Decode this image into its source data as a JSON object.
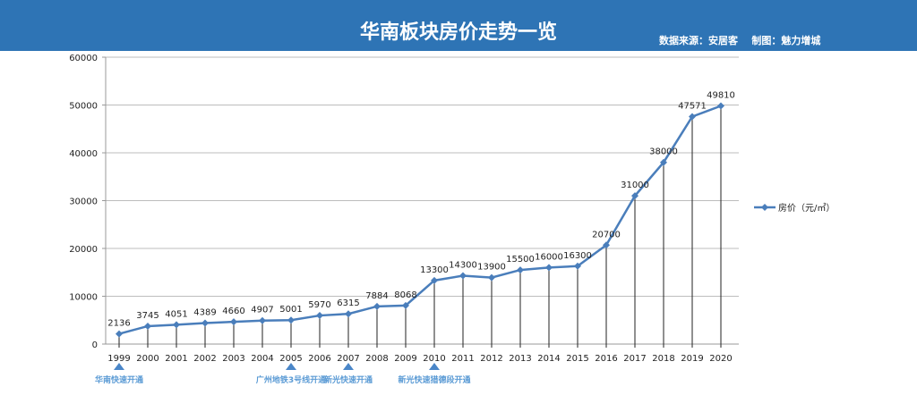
{
  "header": {
    "title": "华南板块房价走势一览",
    "source": "数据来源：安居客",
    "author": "制图：魅力增城",
    "color": "#2e74b5"
  },
  "chart_data": {
    "type": "line",
    "categories": [
      "1999",
      "2000",
      "2001",
      "2002",
      "2003",
      "2004",
      "2005",
      "2006",
      "2007",
      "2008",
      "2009",
      "2010",
      "2011",
      "2012",
      "2013",
      "2014",
      "2015",
      "2016",
      "2017",
      "2018",
      "2019",
      "2020"
    ],
    "series": [
      {
        "name": "房价（元/㎡）",
        "values": [
          2136,
          3745,
          4051,
          4389,
          4660,
          4907,
          5001,
          5970,
          6315,
          7884,
          8068,
          13300,
          14300,
          13900,
          15500,
          16000,
          16300,
          20700,
          31000,
          38000,
          47571,
          49810
        ],
        "color": "#4a7ebb"
      }
    ],
    "ylim": [
      0,
      60000
    ],
    "yticks": [
      0,
      10000,
      20000,
      30000,
      40000,
      50000,
      60000
    ],
    "grid": true,
    "legend": "right",
    "annotations": [
      {
        "year": "1999",
        "text": "华南快速开通"
      },
      {
        "year": "2005",
        "text": "广州地铁3号线开通"
      },
      {
        "year": "2007",
        "text": "新光快速开通"
      },
      {
        "year": "2010",
        "text": "新光快速猎德段开通"
      }
    ],
    "annotation_color": "#5b9bd5"
  }
}
